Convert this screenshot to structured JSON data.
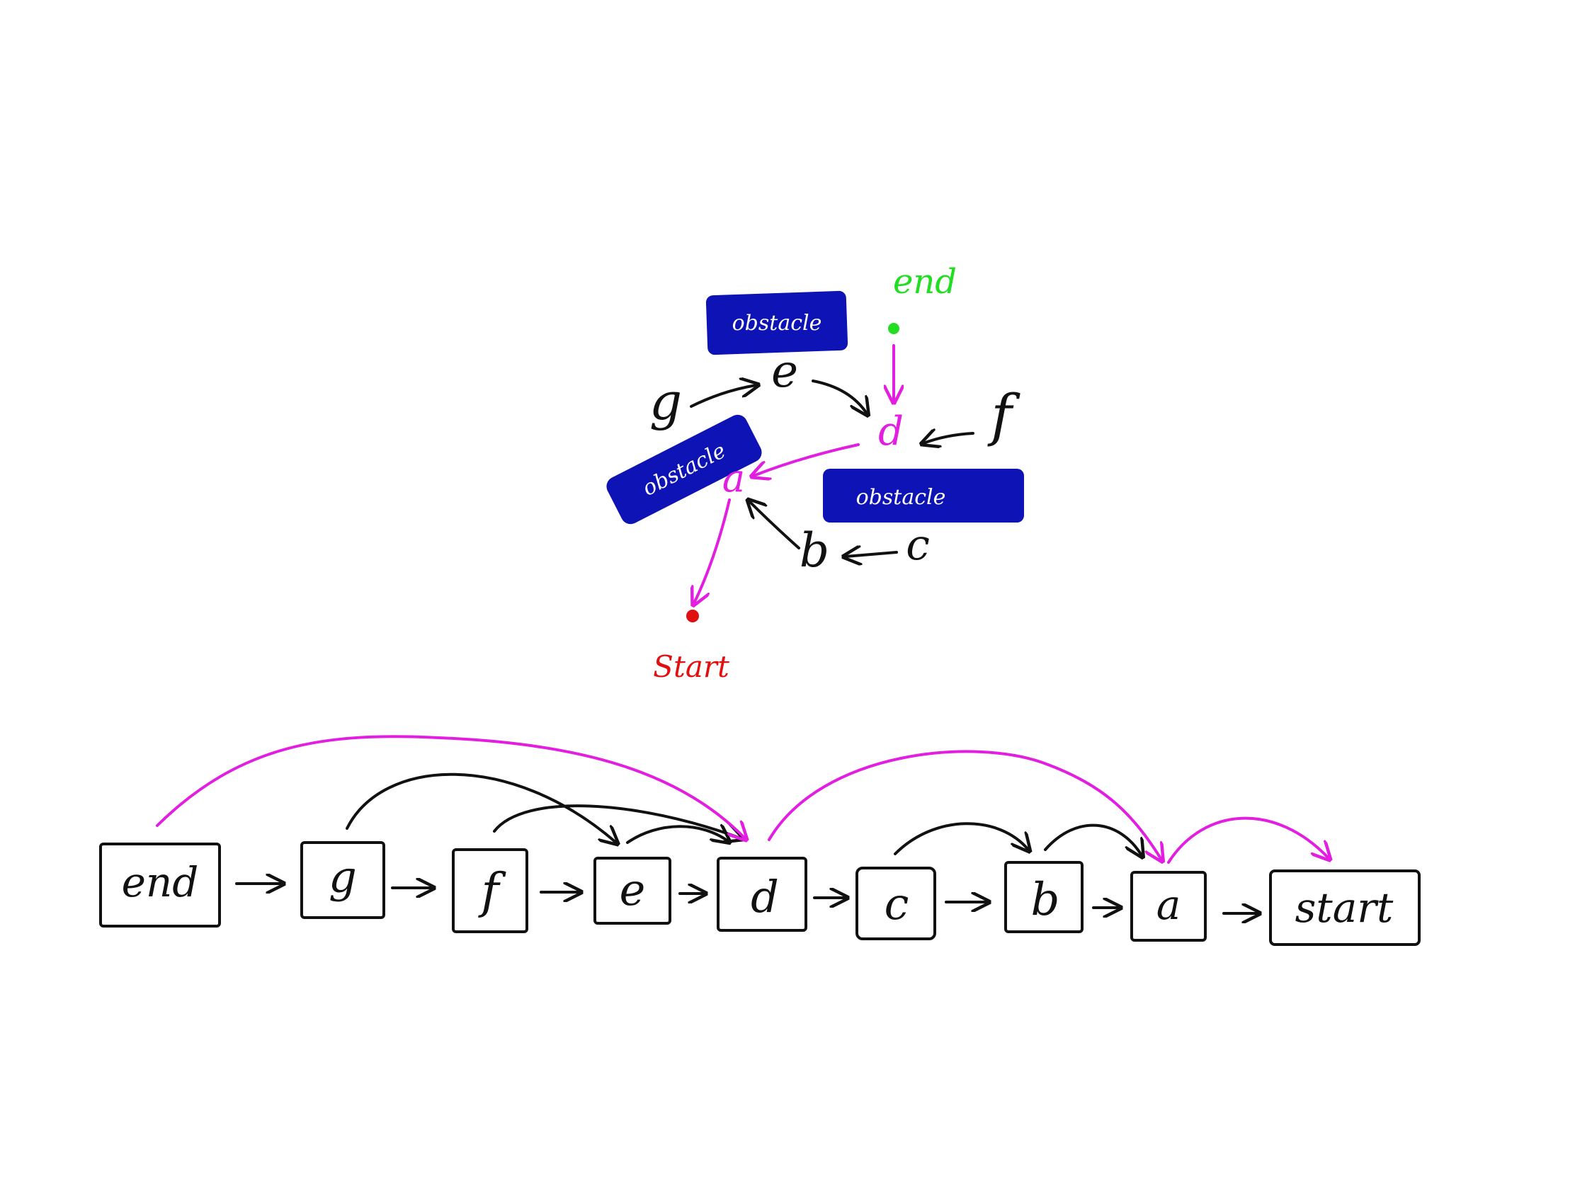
{
  "colors": {
    "ink": "#111111",
    "path": "#e21ee0",
    "obstacle": "#0d13b5",
    "obstacle_text": "#ffffff",
    "start": "#e01010",
    "end": "#22dd22"
  },
  "graph": {
    "end_label": "end",
    "start_label": "Start",
    "obstacle_label": "obstacle",
    "obstacles": [
      "obstacle",
      "obstacle",
      "obstacle"
    ],
    "nodes": {
      "a": "a",
      "b": "b",
      "c": "c",
      "d": "d",
      "e": "e",
      "f": "f",
      "g": "g"
    },
    "path_nodes": [
      "end",
      "d",
      "a",
      "start"
    ]
  },
  "chain": {
    "boxes": [
      "end",
      "g",
      "f",
      "e",
      "d",
      "c",
      "b",
      "a",
      "start"
    ],
    "skip_links": [
      {
        "from": "end",
        "to": "d",
        "kind": "path"
      },
      {
        "from": "d",
        "to": "a",
        "kind": "path"
      },
      {
        "from": "a",
        "to": "start",
        "kind": "path"
      },
      {
        "from": "g",
        "to": "e",
        "kind": "dependency"
      },
      {
        "from": "f",
        "to": "d",
        "kind": "dependency"
      },
      {
        "from": "e",
        "to": "d",
        "kind": "dependency"
      },
      {
        "from": "c",
        "to": "b",
        "kind": "dependency"
      },
      {
        "from": "b",
        "to": "a",
        "kind": "dependency"
      }
    ]
  }
}
